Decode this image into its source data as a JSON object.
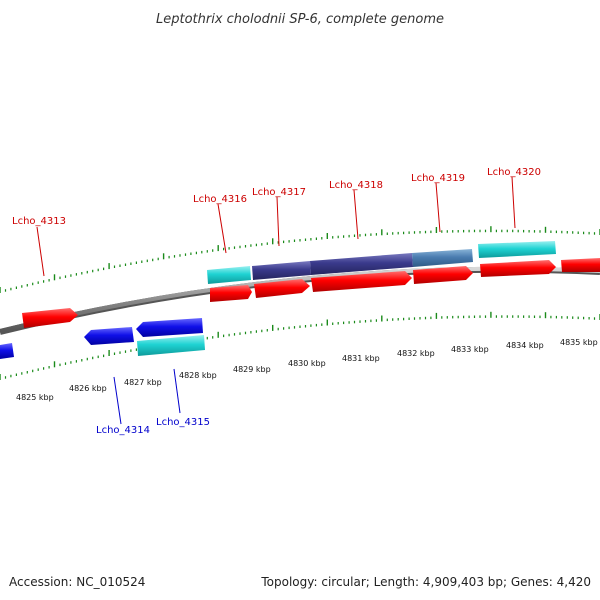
{
  "title": "Leptothrix cholodnii SP-6, complete genome",
  "footer": {
    "accession": "Accession: NC_010524",
    "summary": "Topology: circular; Length: 4,909,403 bp; Genes: 4,420"
  },
  "colors": {
    "forward_gene": "#ff0000",
    "reverse_gene": "#1010e8",
    "cds_feature": "#1fd3d3",
    "feature_dark": "#3a3a8c",
    "feature_mid": "#4a7cb0",
    "backbone": "#8a8a8a",
    "tick": "#1a8a1a",
    "forward_label": "#cc0000",
    "reverse_label": "#0000cc"
  },
  "scale_labels": [
    "4825 kbp",
    "4826 kbp",
    "4827 kbp",
    "4828 kbp",
    "4829 kbp",
    "4830 kbp",
    "4831 kbp",
    "4832 kbp",
    "4833 kbp",
    "4834 kbp",
    "4835 kbp"
  ],
  "gene_labels": {
    "lcho_4313": "Lcho_4313",
    "lcho_4314": "Lcho_4314",
    "lcho_4315": "Lcho_4315",
    "lcho_4316": "Lcho_4316",
    "lcho_4317": "Lcho_4317",
    "lcho_4318": "Lcho_4318",
    "lcho_4319": "Lcho_4319",
    "lcho_4320": "Lcho_4320"
  }
}
